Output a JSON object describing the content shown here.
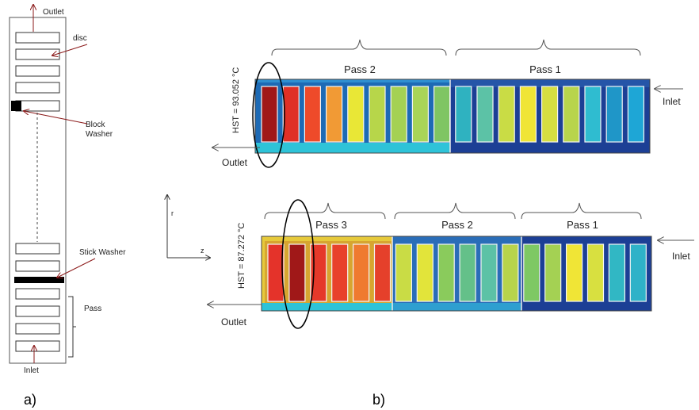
{
  "panel_a": {
    "label": "a)",
    "outlet": "Outlet",
    "disc": "disc",
    "block_washer": [
      "Block",
      "Washer"
    ],
    "stick_washer": "Stick Washer",
    "pass": "Pass",
    "inlet": "Inlet"
  },
  "panel_b": {
    "label": "b)",
    "axis_r": "r",
    "axis_z": "z",
    "top": {
      "hst": "HST = 93.052 °C",
      "passes": [
        "Pass 2",
        "Pass 1"
      ],
      "inlet": "Inlet",
      "outlet": "Outlet",
      "cell_colors": [
        "#a01818",
        "#e03026",
        "#ee4a2a",
        "#f19a35",
        "#e9e736",
        "#b7d64a",
        "#a4d153",
        "#a9d458",
        "#7fc563",
        "#2fb2c0",
        "#5cc2a6",
        "#c9dc45",
        "#f0e536",
        "#d6de42",
        "#b8d44c",
        "#2fbcd0",
        "#1f96c8",
        "#1ea6d6"
      ],
      "band_left": "#2ec3d8",
      "band_right": "#1c3f95"
    },
    "bottom": {
      "hst": "HST = 87.272 °C",
      "passes": [
        "Pass 3",
        "Pass 2",
        "Pass 1"
      ],
      "inlet": "Inlet",
      "outlet": "Outlet",
      "cell_colors": [
        "#e4332a",
        "#a01818",
        "#e5392a",
        "#e8412b",
        "#ef7a30",
        "#e5402b",
        "#c9dc45",
        "#e2e43a",
        "#8acb5c",
        "#64c089",
        "#5cc2a6",
        "#b8d44c",
        "#7ec864",
        "#a4d153",
        "#f0e536",
        "#d8e040",
        "#31b7c4",
        "#2fb2c8"
      ],
      "band_left": "#2ec3d8",
      "band_mid": "#2a6db8",
      "band_right": "#1c3f95"
    }
  }
}
